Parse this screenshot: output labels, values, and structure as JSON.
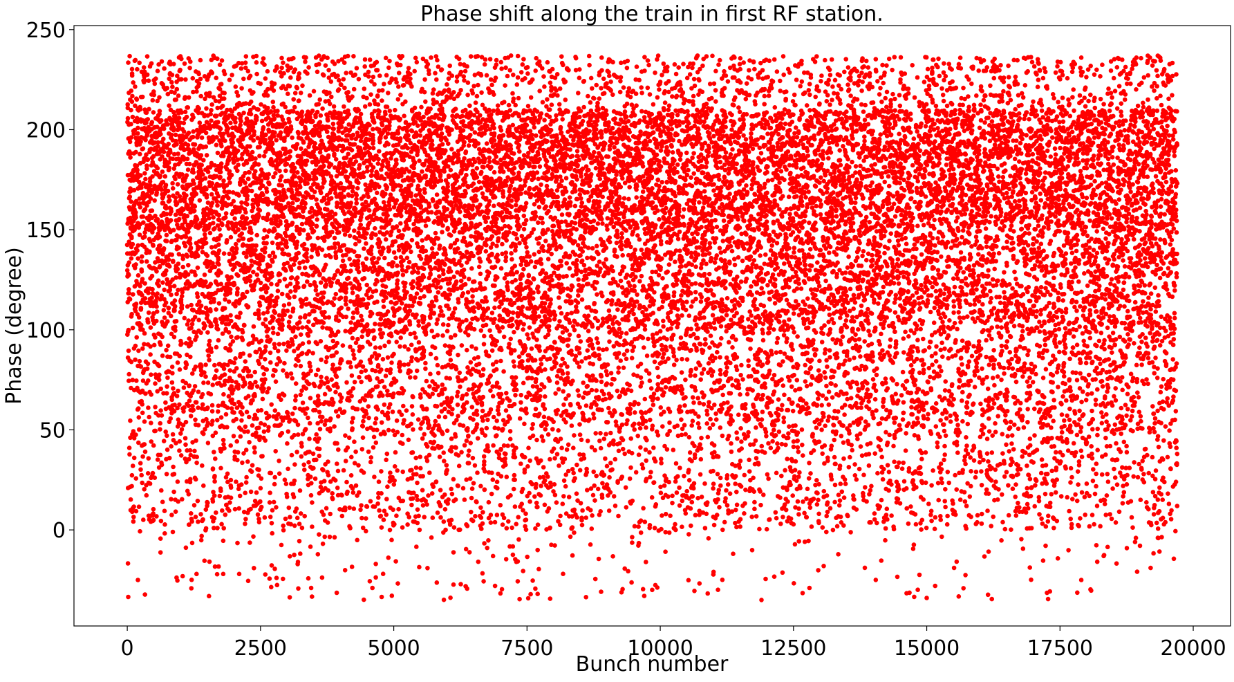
{
  "chart_data": {
    "type": "scatter",
    "title": "Phase shift along the train in first RF station.",
    "xlabel": "Bunch number",
    "ylabel": "Phase (degree)",
    "xlim": [
      -1000,
      20700
    ],
    "ylim": [
      -48,
      252
    ],
    "xticks": [
      0,
      2500,
      5000,
      7500,
      10000,
      12500,
      15000,
      17500,
      20000
    ],
    "yticks": [
      0,
      50,
      100,
      150,
      200,
      250
    ],
    "grid": false,
    "legend": "none",
    "marker_color": "#ff0000",
    "marker_shape": "circle",
    "series": [
      {
        "approximate": true,
        "n_points": 19700,
        "x_range": [
          0,
          19700
        ],
        "density_profile_phase": [
          {
            "range": [
              -35,
              0
            ],
            "relative_density": 0.05
          },
          {
            "range": [
              0,
              50
            ],
            "relative_density": 0.28
          },
          {
            "range": [
              50,
              100
            ],
            "relative_density": 0.45
          },
          {
            "range": [
              100,
              150
            ],
            "relative_density": 0.7
          },
          {
            "range": [
              150,
              210
            ],
            "relative_density": 1.0
          },
          {
            "range": [
              210,
              237
            ],
            "relative_density": 0.35
          }
        ],
        "notable_points": [
          [
            200,
            -25
          ],
          [
            1300,
            -22
          ],
          [
            1800,
            -22
          ],
          [
            2100,
            -22
          ],
          [
            2800,
            -24
          ],
          [
            3450,
            -29
          ],
          [
            4600,
            -29
          ],
          [
            5700,
            236
          ],
          [
            6900,
            -28
          ],
          [
            7200,
            237
          ],
          [
            7700,
            -32
          ],
          [
            8900,
            236
          ],
          [
            9700,
            -33
          ],
          [
            10700,
            237
          ],
          [
            11900,
            -35
          ],
          [
            12800,
            -29
          ],
          [
            15000,
            -34
          ],
          [
            17100,
            233
          ],
          [
            17900,
            -25
          ],
          [
            17900,
            236
          ],
          [
            18900,
            235
          ],
          [
            19200,
            -19
          ]
        ]
      }
    ]
  }
}
